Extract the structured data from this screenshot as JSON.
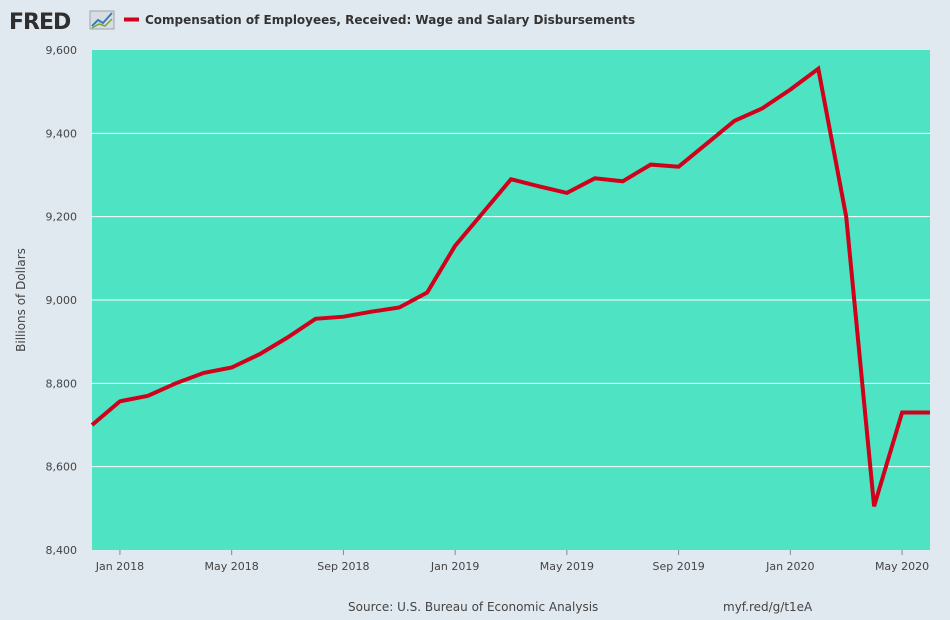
{
  "header": {
    "logo_text": "FRED",
    "legend_label": "Compensation of Employees, Received: Wage and Salary Disbursements"
  },
  "footer": {
    "source": "Source: U.S. Bureau of Economic Analysis",
    "link": "myf.red/g/t1eA"
  },
  "colors": {
    "background": "#e1e9f0",
    "plot_background": "#4ee3c3",
    "series_line": "#d0021b",
    "gridline": "#ffffff"
  },
  "chart_data": {
    "type": "line",
    "title": "",
    "xlabel": "",
    "ylabel": "Billions of Dollars",
    "ylim": [
      8400,
      9600
    ],
    "yticks": [
      8400,
      8600,
      8800,
      9000,
      9200,
      9400,
      9600
    ],
    "ytick_labels": [
      "8,400",
      "8,600",
      "8,800",
      "9,000",
      "9,200",
      "9,400",
      "9,600"
    ],
    "xticks": [
      "2018-01",
      "2018-05",
      "2018-09",
      "2019-01",
      "2019-05",
      "2019-09",
      "2020-01",
      "2020-05"
    ],
    "xtick_labels": [
      "Jan 2018",
      "May 2018",
      "Sep 2018",
      "Jan 2019",
      "May 2019",
      "Sep 2019",
      "Jan 2020",
      "May 2020"
    ],
    "xlim": [
      "2017-12",
      "2020-06"
    ],
    "grid": true,
    "legend_position": "top-left",
    "series": [
      {
        "name": "Compensation of Employees, Received: Wage and Salary Disbursements",
        "x": [
          "2017-12",
          "2018-01",
          "2018-02",
          "2018-03",
          "2018-04",
          "2018-05",
          "2018-06",
          "2018-07",
          "2018-08",
          "2018-09",
          "2018-10",
          "2018-11",
          "2018-12",
          "2019-01",
          "2019-02",
          "2019-03",
          "2019-04",
          "2019-05",
          "2019-06",
          "2019-07",
          "2019-08",
          "2019-09",
          "2019-10",
          "2019-11",
          "2019-12",
          "2020-01",
          "2020-02",
          "2020-03",
          "2020-04",
          "2020-05",
          "2020-06"
        ],
        "values": [
          8700,
          8757,
          8770,
          8800,
          8825,
          8838,
          8870,
          8910,
          8955,
          8960,
          8972,
          8982,
          9018,
          9130,
          9210,
          9290,
          9273,
          9257,
          9292,
          9285,
          9325,
          9320,
          9375,
          9430,
          9460,
          9505,
          9555,
          9200,
          8505,
          8730,
          8730
        ]
      }
    ]
  }
}
